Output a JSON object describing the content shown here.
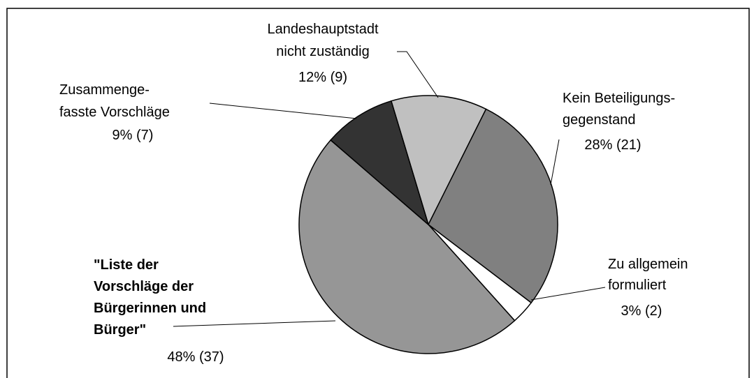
{
  "chart_data": {
    "type": "pie",
    "labels": [
      [
        "Landeshauptstadt",
        "nicht zuständig"
      ],
      [
        "Kein Beteiligungs-",
        "gegenstand"
      ],
      [
        "Zu allgemein",
        "formuliert"
      ],
      [
        "\"Liste der",
        "Vorschläge der",
        "Bürgerinnen und",
        "Bürger\""
      ],
      [
        "Zusammenge-",
        "fasste Vorschläge"
      ]
    ],
    "values": [
      12,
      28,
      3,
      48,
      9
    ],
    "value_labels": [
      "12% (9)",
      "28% (21)",
      "3% (2)",
      "48% (37)",
      "9% (7)"
    ],
    "colors": [
      "#c0c0c0",
      "#808080",
      "#ffffff",
      "#969696",
      "#333333"
    ]
  }
}
